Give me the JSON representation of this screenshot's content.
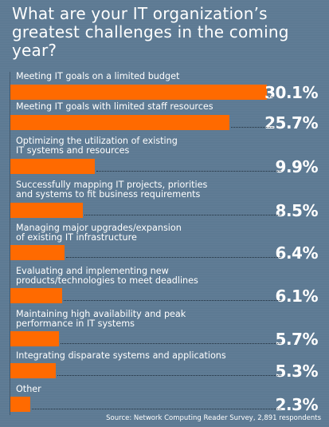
{
  "chart_data": {
    "type": "bar",
    "orientation": "horizontal",
    "title": "What are your IT organization’s greatest challenges in the coming year?",
    "categories": [
      "Meeting IT goals on a limited budget",
      "Meeting IT goals with limited staff resources",
      "Optimizing the utilization of existing\nIT systems and resources",
      "Successfully mapping IT projects, priorities\nand systems to fit business requirements",
      "Managing major upgrades/expansion\nof existing IT infrastructure",
      "Evaluating and implementing new\nproducts/technologies to meet deadlines",
      "Maintaining high availability and peak\nperformance in IT systems",
      "Integrating disparate systems and applications",
      "Other"
    ],
    "values": [
      30.1,
      25.7,
      9.9,
      8.5,
      6.4,
      6.1,
      5.7,
      5.3,
      2.3
    ],
    "value_labels": [
      "30.1%",
      "25.7%",
      "9.9%",
      "8.5%",
      "6.4%",
      "6.1%",
      "5.7%",
      "5.3%",
      "2.3%"
    ],
    "units": "%",
    "xlim": [
      0,
      30.1
    ]
  },
  "source": "Source: Network Computing Reader Survey, 2,891 respondents",
  "colors": {
    "background": "#5d7a93",
    "bar": "#ff6a00",
    "text": "#ffffff",
    "leader": "#1f2d3a"
  }
}
